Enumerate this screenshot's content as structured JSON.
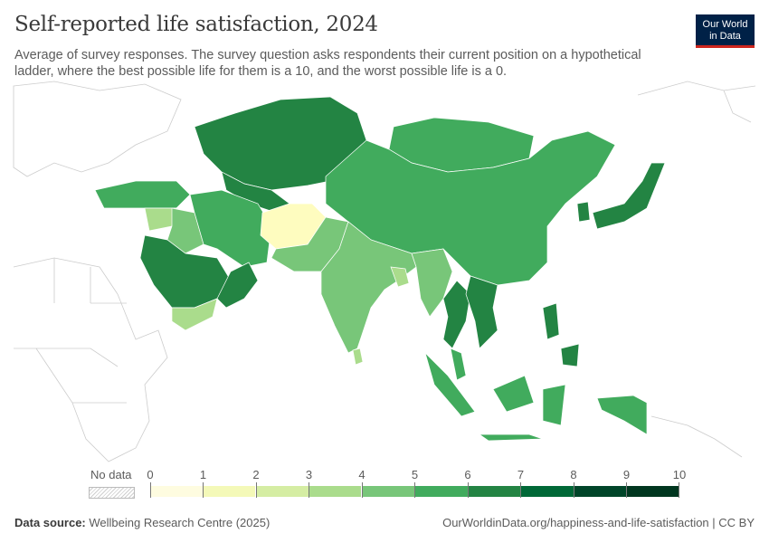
{
  "header": {
    "title": "Self-reported life satisfaction, 2024",
    "subtitle": "Average of survey responses. The survey question asks respondents their current position on a hypothetical ladder, where the best possible life for them is a 10, and the worst possible life is a 0."
  },
  "logo": {
    "line1": "Our World",
    "line2": "in Data"
  },
  "legend": {
    "no_data_label": "No data",
    "ticks": [
      "0",
      "1",
      "2",
      "3",
      "4",
      "5",
      "6",
      "7",
      "8",
      "9",
      "10"
    ],
    "colors": [
      "#fefce0",
      "#f4f9b8",
      "#d5eda3",
      "#aadc8c",
      "#78c679",
      "#41ab5d",
      "#238443",
      "#006837",
      "#004529",
      "#00361f"
    ]
  },
  "map": {
    "regions": [
      {
        "name": "Afghanistan",
        "color": "#fefcbf"
      },
      {
        "name": "Kazakhstan",
        "color": "#238443"
      },
      {
        "name": "Mongolia",
        "color": "#41ab5d"
      },
      {
        "name": "China",
        "color": "#41ab5d"
      },
      {
        "name": "India",
        "color": "#78c679"
      },
      {
        "name": "Pakistan",
        "color": "#78c679"
      },
      {
        "name": "Iran",
        "color": "#41ab5d"
      },
      {
        "name": "Saudi Arabia",
        "color": "#238443"
      },
      {
        "name": "Yemen",
        "color": "#aadc8c"
      },
      {
        "name": "Oman",
        "color": "#238443"
      },
      {
        "name": "Turkey",
        "color": "#41ab5d"
      },
      {
        "name": "Iraq",
        "color": "#78c679"
      },
      {
        "name": "Syria",
        "color": "#aadc8c"
      },
      {
        "name": "Thailand",
        "color": "#238443"
      },
      {
        "name": "Vietnam",
        "color": "#238443"
      },
      {
        "name": "Philippines",
        "color": "#238443"
      },
      {
        "name": "Indonesia",
        "color": "#41ab5d"
      },
      {
        "name": "Malaysia",
        "color": "#41ab5d"
      },
      {
        "name": "Japan",
        "color": "#238443"
      },
      {
        "name": "South Korea",
        "color": "#238443"
      },
      {
        "name": "Sri Lanka",
        "color": "#aadc8c"
      },
      {
        "name": "Bangladesh",
        "color": "#aadc8c"
      },
      {
        "name": "Myanmar",
        "color": "#78c679"
      },
      {
        "name": "Papua New Guinea",
        "color": "#41ab5d"
      },
      {
        "name": "Uzbekistan",
        "color": "#238443"
      }
    ]
  },
  "footer": {
    "source_label": "Data source:",
    "source": "Wellbeing Research Centre (2025)",
    "url": "OurWorldinData.org/happiness-and-life-satisfaction | CC BY"
  }
}
